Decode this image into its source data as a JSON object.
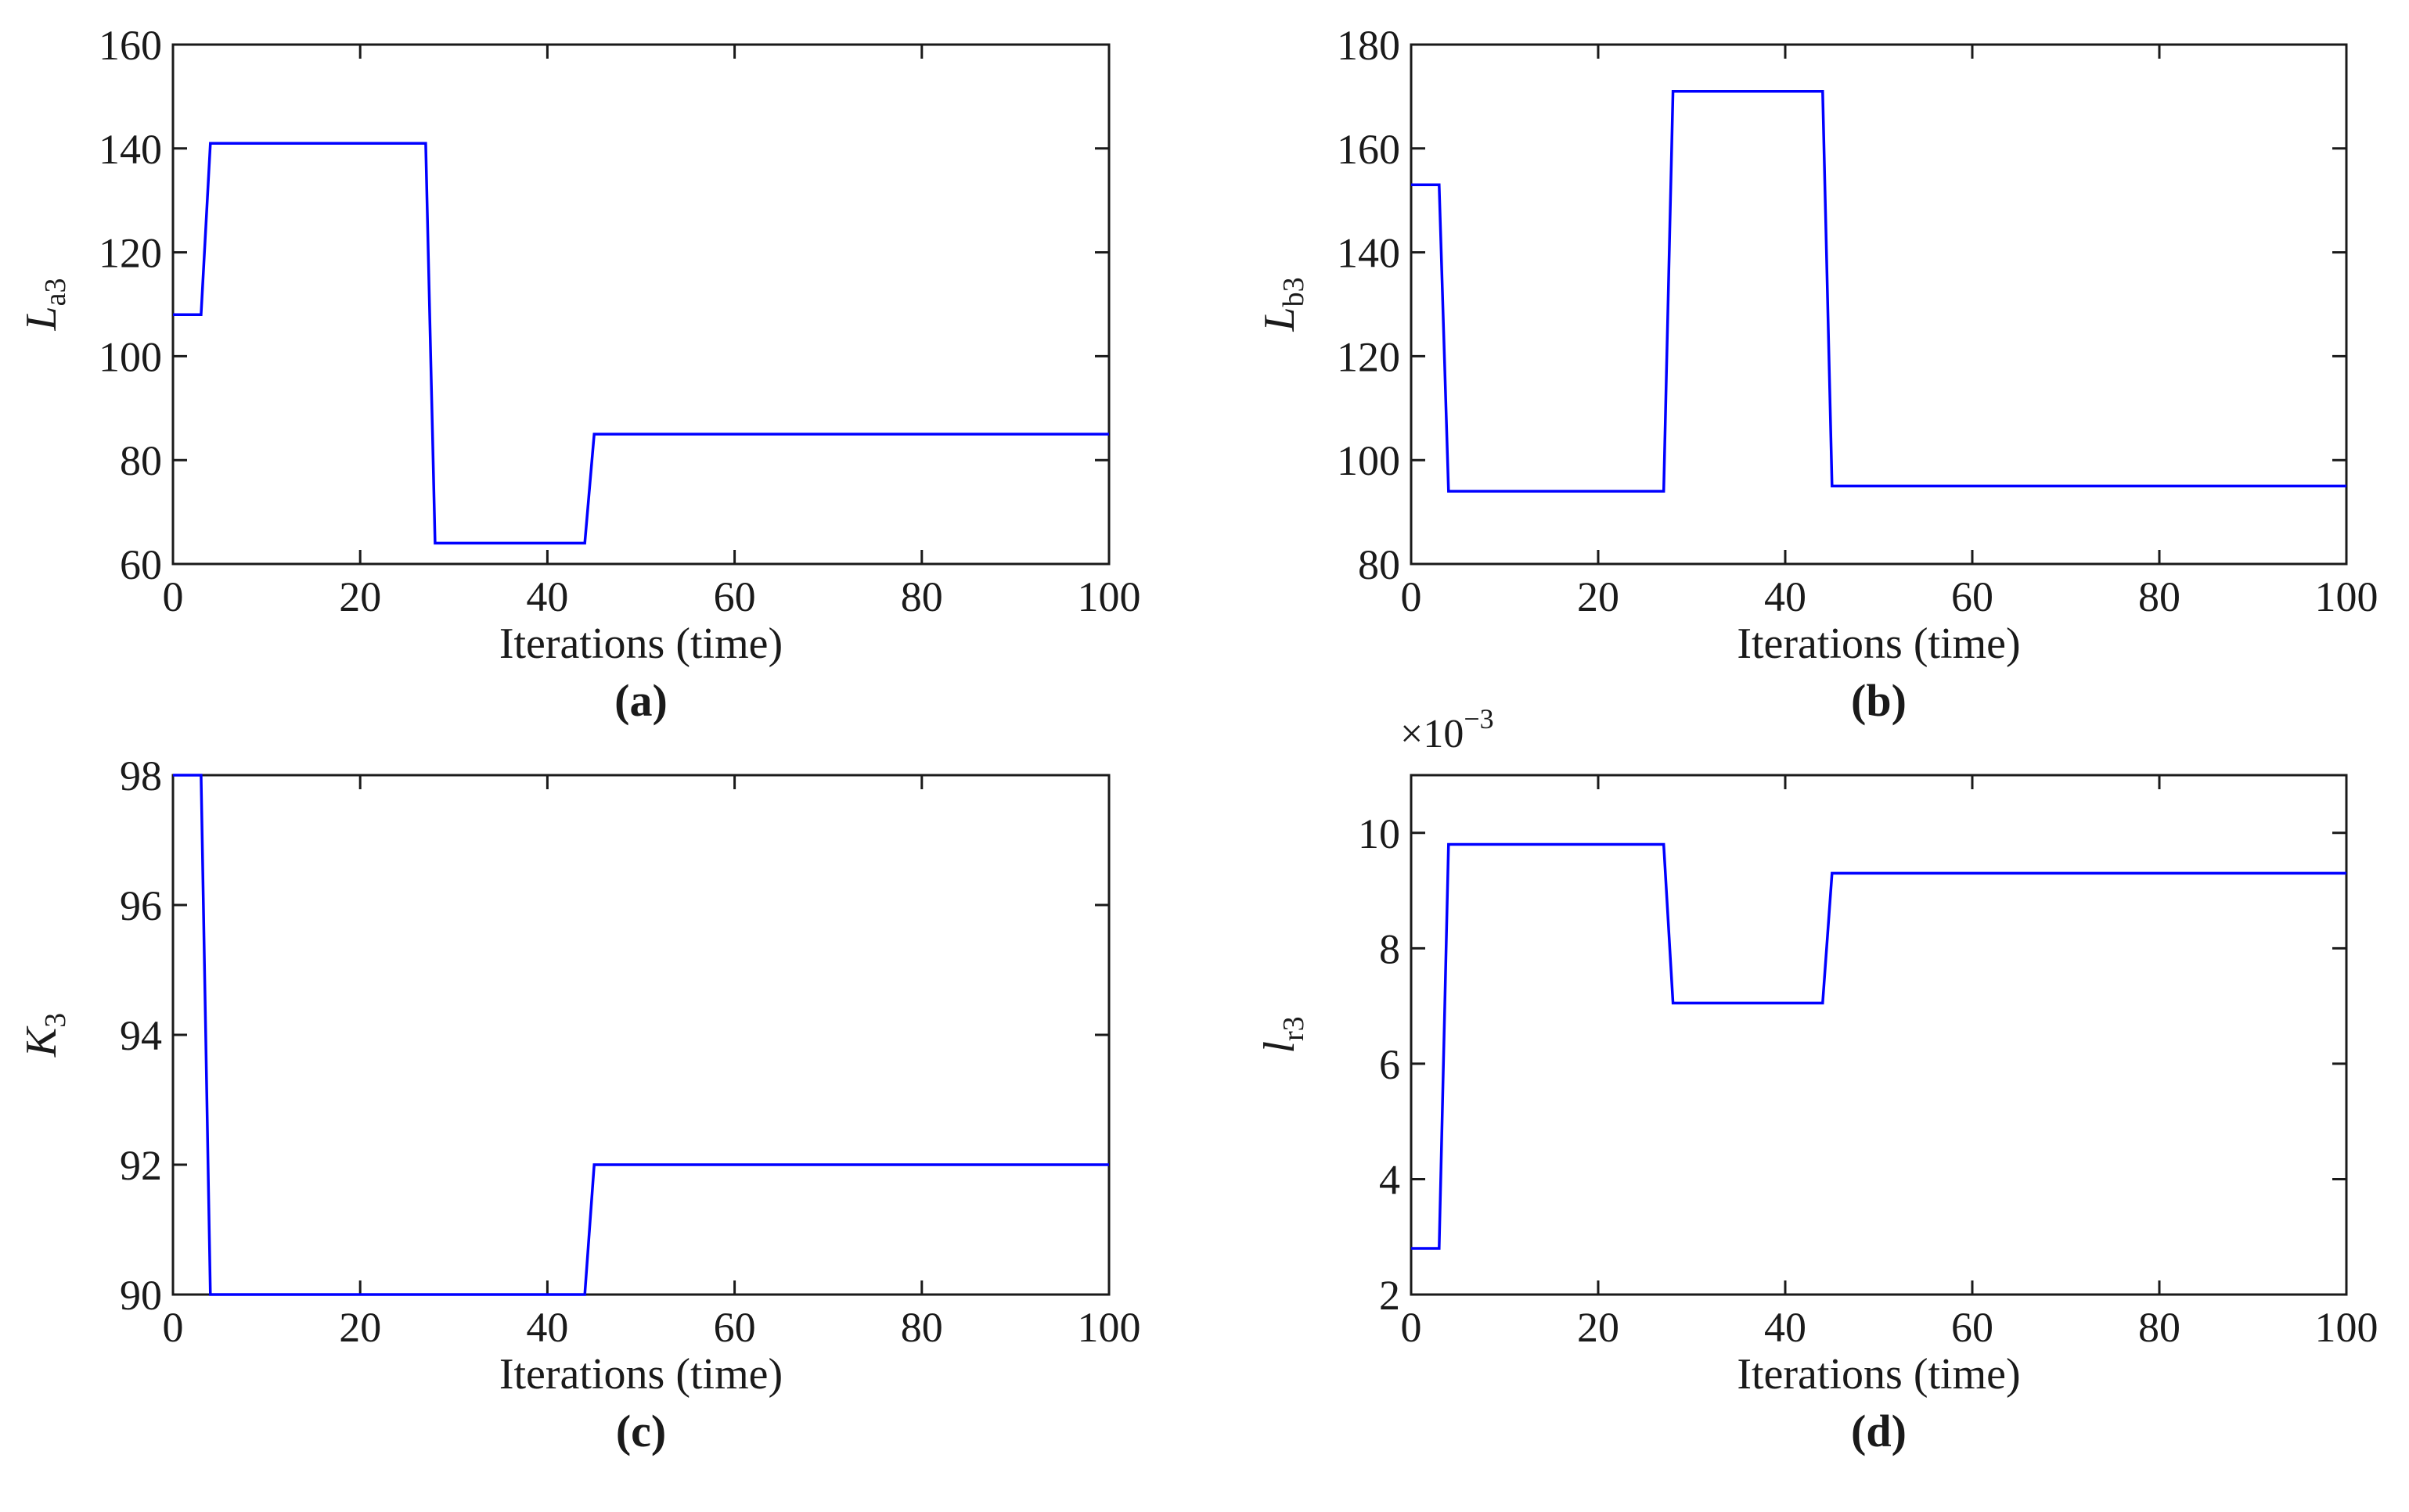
{
  "chart_data": [
    {
      "panel": "(a)",
      "type": "line",
      "xlabel": "Iterations (time)",
      "ylabel": {
        "main": "L",
        "sub": "a3"
      },
      "xlim": [
        0,
        100
      ],
      "ylim": [
        60,
        160
      ],
      "xticks": [
        0,
        20,
        40,
        60,
        80,
        100
      ],
      "yticks": [
        60,
        80,
        100,
        120,
        140,
        160
      ],
      "line_color": "#0000ff",
      "series": [
        {
          "name": "La3",
          "x": [
            0,
            3,
            4,
            27,
            28,
            44,
            45,
            100
          ],
          "y": [
            108,
            108,
            141,
            141,
            64,
            64,
            85,
            85
          ]
        }
      ]
    },
    {
      "panel": "(b)",
      "type": "line",
      "xlabel": "Iterations (time)",
      "ylabel": {
        "main": "L",
        "sub": "b3"
      },
      "xlim": [
        0,
        100
      ],
      "ylim": [
        80,
        180
      ],
      "xticks": [
        0,
        20,
        40,
        60,
        80,
        100
      ],
      "yticks": [
        80,
        100,
        120,
        140,
        160,
        180
      ],
      "line_color": "#0000ff",
      "series": [
        {
          "name": "Lb3",
          "x": [
            0,
            3,
            4,
            27,
            28,
            44,
            45,
            100
          ],
          "y": [
            153,
            153,
            94,
            94,
            171,
            171,
            95,
            95
          ]
        }
      ]
    },
    {
      "panel": "(c)",
      "type": "line",
      "xlabel": "Iterations (time)",
      "ylabel": {
        "main": "K",
        "sub": "3"
      },
      "xlim": [
        0,
        100
      ],
      "ylim": [
        90,
        98
      ],
      "xticks": [
        0,
        20,
        40,
        60,
        80,
        100
      ],
      "yticks": [
        90,
        92,
        94,
        96,
        98
      ],
      "line_color": "#0000ff",
      "series": [
        {
          "name": "K3",
          "x": [
            0,
            3,
            4,
            44,
            45,
            100
          ],
          "y": [
            98,
            98,
            90,
            90,
            92,
            92
          ]
        }
      ]
    },
    {
      "panel": "(d)",
      "type": "line",
      "xlabel": "Iterations (time)",
      "ylabel": {
        "main": "l",
        "sub": "r3"
      },
      "multiplier": {
        "base": "×10",
        "exp": "−3"
      },
      "xlim": [
        0,
        100
      ],
      "ylim": [
        2,
        11
      ],
      "xticks": [
        0,
        20,
        40,
        60,
        80,
        100
      ],
      "yticks": [
        2,
        4,
        6,
        8,
        10
      ],
      "line_color": "#0000ff",
      "series": [
        {
          "name": "lr3",
          "x": [
            0,
            3,
            4,
            27,
            28,
            44,
            45,
            100
          ],
          "y": [
            2.8,
            2.8,
            9.8,
            9.8,
            7.05,
            7.05,
            9.3,
            9.3
          ]
        }
      ]
    }
  ]
}
